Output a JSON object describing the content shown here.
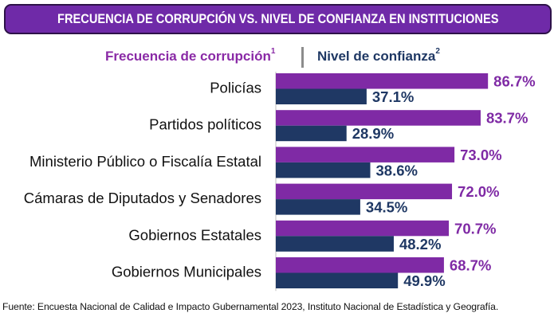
{
  "title": "FRECUENCIA DE CORRUPCIÓN VS. NIVEL DE CONFIANZA EN INSTITUCIONES",
  "colors": {
    "corruption": "#7f2aa5",
    "confidence": "#1f3864",
    "title_bg": "#6f2aa8"
  },
  "chart_data": {
    "type": "bar",
    "orientation": "horizontal",
    "title": "FRECUENCIA DE CORRUPCIÓN VS. NIVEL DE CONFIANZA EN INSTITUCIONES",
    "categories": [
      "Policías",
      "Partidos políticos",
      "Ministerio Público o Fiscalía Estatal",
      "Cámaras de Diputados y Senadores",
      "Gobiernos Estatales",
      "Gobiernos Municipales"
    ],
    "series": [
      {
        "name": "Frecuencia de corrupción",
        "superscript": "1",
        "values": [
          86.7,
          83.7,
          73.0,
          72.0,
          70.7,
          68.7
        ],
        "labels": [
          "86.7%",
          "83.7%",
          "73.0%",
          "72.0%",
          "70.7%",
          "68.7%"
        ]
      },
      {
        "name": "Nivel de confianza",
        "superscript": "2",
        "values": [
          37.1,
          28.9,
          38.6,
          34.5,
          48.2,
          49.9
        ],
        "labels": [
          "37.1%",
          "28.9%",
          "38.6%",
          "34.5%",
          "48.2%",
          "49.9%"
        ]
      }
    ],
    "xlim": [
      0,
      100
    ],
    "unit": "%"
  },
  "footer": "Fuente: Encuesta Nacional de Calidad e Impacto Gubernamental 2023, Instituto Nacional de Estadística y Geografía."
}
